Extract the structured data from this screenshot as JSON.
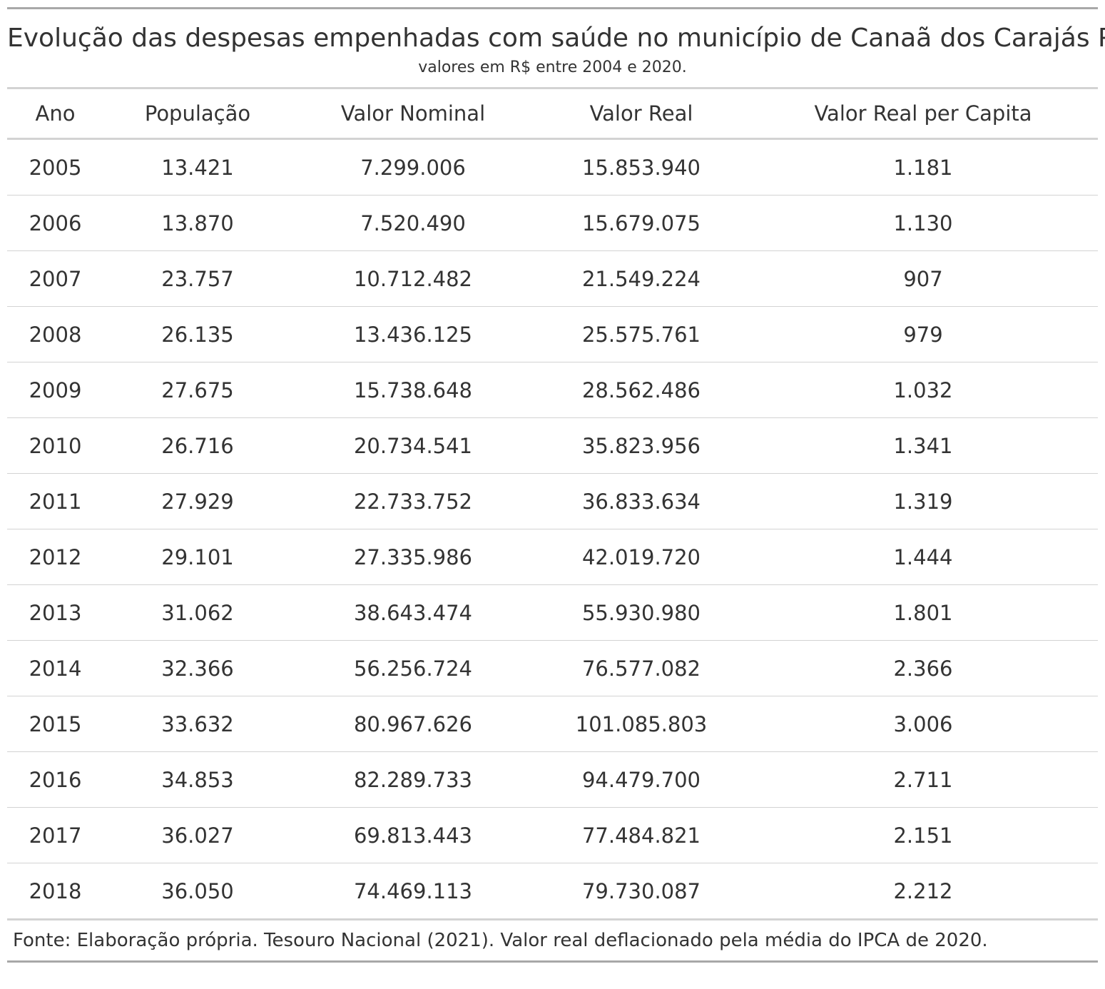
{
  "title": "Evolução das despesas empenhadas com saúde no município de Canaã dos Carajás PA",
  "subtitle": "valores em R$ entre 2004 e 2020.",
  "table": {
    "headers": [
      "Ano",
      "População",
      "Valor Nominal",
      "Valor Real",
      "Valor Real per Capita"
    ],
    "rows": [
      [
        "2005",
        "13.421",
        "7.299.006",
        "15.853.940",
        "1.181"
      ],
      [
        "2006",
        "13.870",
        "7.520.490",
        "15.679.075",
        "1.130"
      ],
      [
        "2007",
        "23.757",
        "10.712.482",
        "21.549.224",
        "907"
      ],
      [
        "2008",
        "26.135",
        "13.436.125",
        "25.575.761",
        "979"
      ],
      [
        "2009",
        "27.675",
        "15.738.648",
        "28.562.486",
        "1.032"
      ],
      [
        "2010",
        "26.716",
        "20.734.541",
        "35.823.956",
        "1.341"
      ],
      [
        "2011",
        "27.929",
        "22.733.752",
        "36.833.634",
        "1.319"
      ],
      [
        "2012",
        "29.101",
        "27.335.986",
        "42.019.720",
        "1.444"
      ],
      [
        "2013",
        "31.062",
        "38.643.474",
        "55.930.980",
        "1.801"
      ],
      [
        "2014",
        "32.366",
        "56.256.724",
        "76.577.082",
        "2.366"
      ],
      [
        "2015",
        "33.632",
        "80.967.626",
        "101.085.803",
        "3.006"
      ],
      [
        "2016",
        "34.853",
        "82.289.733",
        "94.479.700",
        "2.711"
      ],
      [
        "2017",
        "36.027",
        "69.813.443",
        "77.484.821",
        "2.151"
      ],
      [
        "2018",
        "36.050",
        "74.469.113",
        "79.730.087",
        "2.212"
      ]
    ]
  },
  "source": "Fonte: Elaboração própria. Tesouro Nacional (2021). Valor real deflacionado pela média do IPCA de 2020."
}
